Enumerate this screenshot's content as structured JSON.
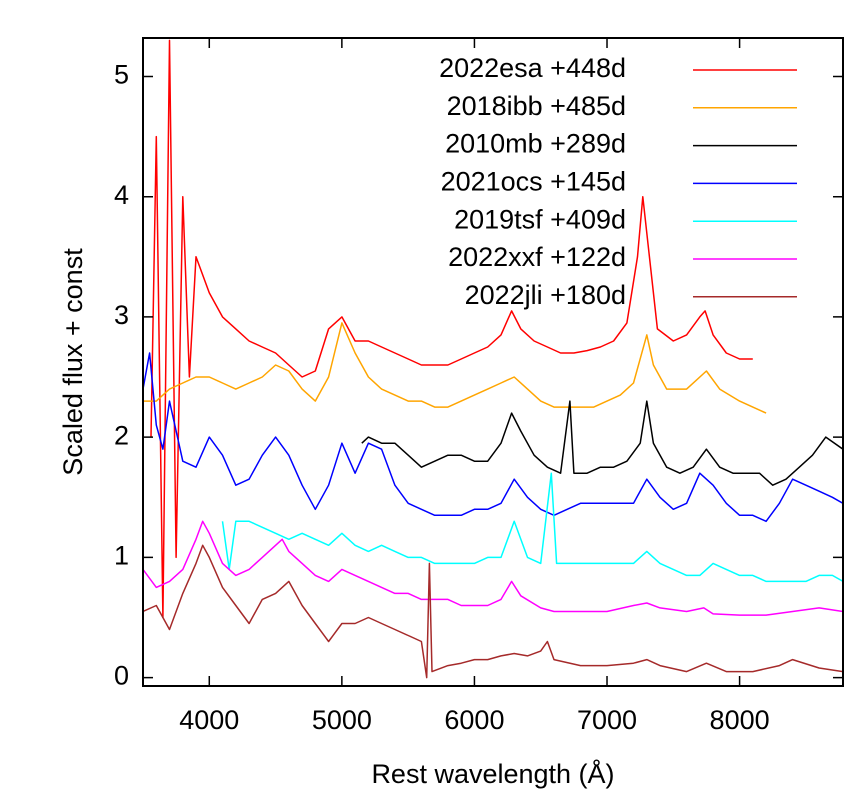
{
  "chart_data": {
    "type": "line",
    "xlabel": "Rest wavelength (Å)",
    "ylabel": "Scaled flux + const",
    "xlim": [
      3500,
      8780
    ],
    "ylim": [
      -0.07,
      5.32
    ],
    "xticks": [
      4000,
      5000,
      6000,
      7000,
      8000
    ],
    "yticks": [
      0,
      1,
      2,
      3,
      4,
      5
    ],
    "legend": "upper right",
    "series": [
      {
        "name": "2022esa +448d",
        "color": "#ff0000",
        "x": [
          3560,
          3600,
          3650,
          3700,
          3750,
          3800,
          3850,
          3900,
          4000,
          4100,
          4200,
          4300,
          4400,
          4500,
          4600,
          4700,
          4800,
          4900,
          5000,
          5100,
          5200,
          5300,
          5400,
          5500,
          5600,
          5700,
          5800,
          5900,
          6000,
          6100,
          6200,
          6280,
          6350,
          6450,
          6550,
          6650,
          6750,
          6850,
          6950,
          7050,
          7150,
          7230,
          7270,
          7310,
          7380,
          7500,
          7600,
          7700,
          7740,
          7800,
          7900,
          8000,
          8100
        ],
        "values": [
          2.0,
          4.5,
          0.5,
          5.3,
          1.0,
          4.0,
          2.5,
          3.5,
          3.2,
          3.0,
          2.9,
          2.8,
          2.75,
          2.7,
          2.6,
          2.5,
          2.55,
          2.9,
          3.0,
          2.8,
          2.8,
          2.75,
          2.7,
          2.65,
          2.6,
          2.6,
          2.6,
          2.65,
          2.7,
          2.75,
          2.85,
          3.05,
          2.9,
          2.8,
          2.75,
          2.7,
          2.7,
          2.72,
          2.75,
          2.8,
          2.95,
          3.5,
          4.0,
          3.6,
          2.9,
          2.8,
          2.85,
          3.0,
          3.05,
          2.85,
          2.7,
          2.65,
          2.65
        ]
      },
      {
        "name": "2018ibb +485d",
        "color": "#ffa500",
        "x": [
          3500,
          3600,
          3700,
          3800,
          3900,
          4000,
          4100,
          4200,
          4300,
          4400,
          4500,
          4600,
          4700,
          4800,
          4900,
          5000,
          5100,
          5200,
          5300,
          5400,
          5500,
          5600,
          5700,
          5800,
          5900,
          6000,
          6100,
          6200,
          6300,
          6400,
          6500,
          6600,
          6700,
          6800,
          6900,
          7000,
          7100,
          7200,
          7300,
          7350,
          7450,
          7600,
          7750,
          7850,
          8000,
          8100,
          8200
        ],
        "values": [
          2.3,
          2.3,
          2.4,
          2.45,
          2.5,
          2.5,
          2.45,
          2.4,
          2.45,
          2.5,
          2.6,
          2.55,
          2.4,
          2.3,
          2.5,
          2.95,
          2.7,
          2.5,
          2.4,
          2.35,
          2.3,
          2.3,
          2.25,
          2.25,
          2.3,
          2.35,
          2.4,
          2.45,
          2.5,
          2.4,
          2.3,
          2.25,
          2.25,
          2.25,
          2.25,
          2.3,
          2.35,
          2.45,
          2.85,
          2.6,
          2.4,
          2.4,
          2.55,
          2.4,
          2.3,
          2.25,
          2.2
        ]
      },
      {
        "name": "2010mb +289d",
        "color": "#000000",
        "x": [
          5150,
          5200,
          5300,
          5400,
          5500,
          5600,
          5700,
          5800,
          5900,
          6000,
          6100,
          6200,
          6280,
          6350,
          6450,
          6550,
          6650,
          6720,
          6750,
          6850,
          6950,
          7050,
          7150,
          7250,
          7300,
          7350,
          7450,
          7550,
          7650,
          7750,
          7850,
          7950,
          8050,
          8150,
          8250,
          8350,
          8450,
          8550,
          8650,
          8780
        ],
        "values": [
          1.95,
          2.0,
          1.95,
          1.95,
          1.85,
          1.75,
          1.8,
          1.85,
          1.85,
          1.8,
          1.8,
          1.95,
          2.2,
          2.05,
          1.85,
          1.75,
          1.7,
          2.3,
          1.7,
          1.7,
          1.75,
          1.75,
          1.8,
          1.95,
          2.3,
          1.95,
          1.75,
          1.7,
          1.75,
          1.9,
          1.75,
          1.7,
          1.7,
          1.7,
          1.6,
          1.65,
          1.75,
          1.85,
          2.0,
          1.9
        ]
      },
      {
        "name": "2021ocs +145d",
        "color": "#0000ff",
        "x": [
          3500,
          3550,
          3600,
          3650,
          3700,
          3800,
          3900,
          4000,
          4100,
          4200,
          4300,
          4400,
          4500,
          4600,
          4700,
          4800,
          4900,
          5000,
          5100,
          5200,
          5300,
          5400,
          5500,
          5600,
          5700,
          5800,
          5900,
          6000,
          6100,
          6200,
          6300,
          6400,
          6500,
          6600,
          6700,
          6800,
          6900,
          7000,
          7100,
          7200,
          7300,
          7400,
          7500,
          7600,
          7700,
          7800,
          7900,
          8000,
          8100,
          8200,
          8300,
          8400,
          8500,
          8600,
          8700,
          8780
        ],
        "values": [
          2.4,
          2.7,
          2.1,
          1.9,
          2.3,
          1.8,
          1.75,
          2.0,
          1.85,
          1.6,
          1.65,
          1.85,
          2.0,
          1.85,
          1.6,
          1.4,
          1.6,
          1.95,
          1.7,
          1.95,
          1.9,
          1.6,
          1.45,
          1.4,
          1.35,
          1.35,
          1.35,
          1.4,
          1.4,
          1.45,
          1.65,
          1.5,
          1.4,
          1.35,
          1.4,
          1.45,
          1.45,
          1.45,
          1.45,
          1.45,
          1.65,
          1.5,
          1.4,
          1.45,
          1.7,
          1.6,
          1.45,
          1.35,
          1.35,
          1.3,
          1.45,
          1.65,
          1.6,
          1.55,
          1.5,
          1.45
        ]
      },
      {
        "name": "2019tsf +409d",
        "color": "#00ffff",
        "x": [
          4100,
          4150,
          4200,
          4300,
          4400,
          4500,
          4600,
          4700,
          4800,
          4900,
          5000,
          5100,
          5200,
          5300,
          5400,
          5500,
          5600,
          5700,
          5800,
          5900,
          6000,
          6100,
          6200,
          6300,
          6400,
          6500,
          6580,
          6620,
          6700,
          6800,
          6900,
          7000,
          7100,
          7200,
          7300,
          7400,
          7500,
          7600,
          7700,
          7800,
          7900,
          8000,
          8100,
          8200,
          8300,
          8400,
          8500,
          8600,
          8700,
          8780
        ],
        "values": [
          1.3,
          0.9,
          1.3,
          1.3,
          1.25,
          1.2,
          1.15,
          1.2,
          1.15,
          1.1,
          1.2,
          1.1,
          1.05,
          1.1,
          1.05,
          1.0,
          1.0,
          0.95,
          0.95,
          0.95,
          0.95,
          1.0,
          1.0,
          1.3,
          1.0,
          0.95,
          1.7,
          0.95,
          0.95,
          0.95,
          0.95,
          0.95,
          0.95,
          0.95,
          1.05,
          0.95,
          0.9,
          0.85,
          0.85,
          0.95,
          0.9,
          0.85,
          0.85,
          0.8,
          0.8,
          0.8,
          0.8,
          0.85,
          0.85,
          0.8
        ]
      },
      {
        "name": "2022xxf +122d",
        "color": "#ff00ff",
        "x": [
          3500,
          3600,
          3700,
          3800,
          3900,
          3950,
          4000,
          4100,
          4200,
          4300,
          4400,
          4500,
          4550,
          4600,
          4700,
          4800,
          4900,
          5000,
          5100,
          5200,
          5300,
          5400,
          5500,
          5600,
          5700,
          5800,
          5900,
          6000,
          6100,
          6200,
          6280,
          6350,
          6500,
          6600,
          6800,
          7000,
          7200,
          7300,
          7400,
          7600,
          7730,
          7800,
          8000,
          8200,
          8400,
          8600,
          8780
        ],
        "values": [
          0.9,
          0.75,
          0.8,
          0.9,
          1.15,
          1.3,
          1.2,
          0.95,
          0.85,
          0.9,
          1.0,
          1.1,
          1.15,
          1.05,
          0.95,
          0.85,
          0.8,
          0.9,
          0.85,
          0.8,
          0.75,
          0.7,
          0.7,
          0.65,
          0.65,
          0.65,
          0.6,
          0.6,
          0.6,
          0.65,
          0.8,
          0.68,
          0.58,
          0.55,
          0.55,
          0.55,
          0.6,
          0.62,
          0.58,
          0.55,
          0.58,
          0.53,
          0.52,
          0.52,
          0.55,
          0.58,
          0.55
        ]
      },
      {
        "name": "2022jli +180d",
        "color": "#a52a2a",
        "x": [
          3500,
          3600,
          3700,
          3800,
          3900,
          3950,
          4000,
          4100,
          4200,
          4300,
          4400,
          4500,
          4600,
          4700,
          4800,
          4900,
          5000,
          5100,
          5200,
          5300,
          5400,
          5500,
          5600,
          5640,
          5660,
          5680,
          5800,
          5900,
          6000,
          6100,
          6200,
          6300,
          6400,
          6500,
          6550,
          6600,
          6800,
          7000,
          7200,
          7300,
          7400,
          7600,
          7750,
          7900,
          8100,
          8300,
          8400,
          8600,
          8780
        ],
        "values": [
          0.55,
          0.6,
          0.4,
          0.7,
          0.95,
          1.1,
          1.0,
          0.75,
          0.6,
          0.45,
          0.65,
          0.7,
          0.8,
          0.6,
          0.45,
          0.3,
          0.45,
          0.45,
          0.5,
          0.45,
          0.4,
          0.35,
          0.3,
          0.0,
          0.95,
          0.05,
          0.1,
          0.12,
          0.15,
          0.15,
          0.18,
          0.2,
          0.18,
          0.22,
          0.3,
          0.15,
          0.1,
          0.1,
          0.12,
          0.15,
          0.1,
          0.05,
          0.12,
          0.05,
          0.05,
          0.1,
          0.15,
          0.08,
          0.05
        ]
      }
    ]
  }
}
